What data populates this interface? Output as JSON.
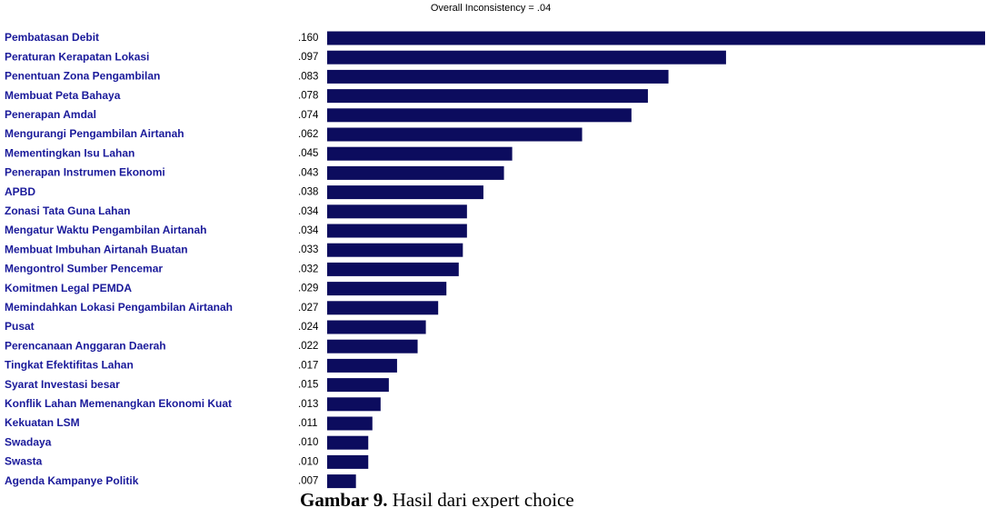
{
  "chart_data": {
    "type": "bar",
    "orientation": "horizontal",
    "title": "Overall Inconsistency = .04",
    "categories": [
      "Pembatasan Debit",
      "Peraturan Kerapatan Lokasi",
      "Penentuan Zona Pengambilan",
      "Membuat Peta Bahaya",
      "Penerapan Amdal",
      "Mengurangi Pengambilan Airtanah",
      "Mementingkan Isu Lahan",
      "Penerapan Instrumen Ekonomi",
      "APBD",
      "Zonasi Tata Guna Lahan",
      "Mengatur Waktu Pengambilan Airtanah",
      "Membuat Imbuhan Airtanah Buatan",
      "Mengontrol Sumber Pencemar",
      "Komitmen Legal PEMDA",
      "Memindahkan Lokasi Pengambilan Airtanah",
      "Pusat",
      "Perencanaan Anggaran Daerah",
      "Tingkat Efektifitas Lahan",
      "Syarat Investasi besar",
      "Konflik Lahan Memenangkan Ekonomi Kuat",
      "Kekuatan LSM",
      "Swadaya",
      "Swasta",
      "Agenda Kampanye Politik"
    ],
    "values": [
      0.16,
      0.097,
      0.083,
      0.078,
      0.074,
      0.062,
      0.045,
      0.043,
      0.038,
      0.034,
      0.034,
      0.033,
      0.032,
      0.029,
      0.027,
      0.024,
      0.022,
      0.017,
      0.015,
      0.013,
      0.011,
      0.01,
      0.01,
      0.007
    ],
    "value_labels": [
      ".160",
      ".097",
      ".083",
      ".078",
      ".074",
      ".062",
      ".045",
      ".043",
      ".038",
      ".034",
      ".034",
      ".033",
      ".032",
      ".029",
      ".027",
      ".024",
      ".022",
      ".017",
      ".015",
      ".013",
      ".011",
      ".010",
      ".010",
      ".007"
    ],
    "color": "#0c0c5e"
  },
  "caption": {
    "label": "Gambar 9.",
    "text": "Hasil dari expert choice"
  }
}
